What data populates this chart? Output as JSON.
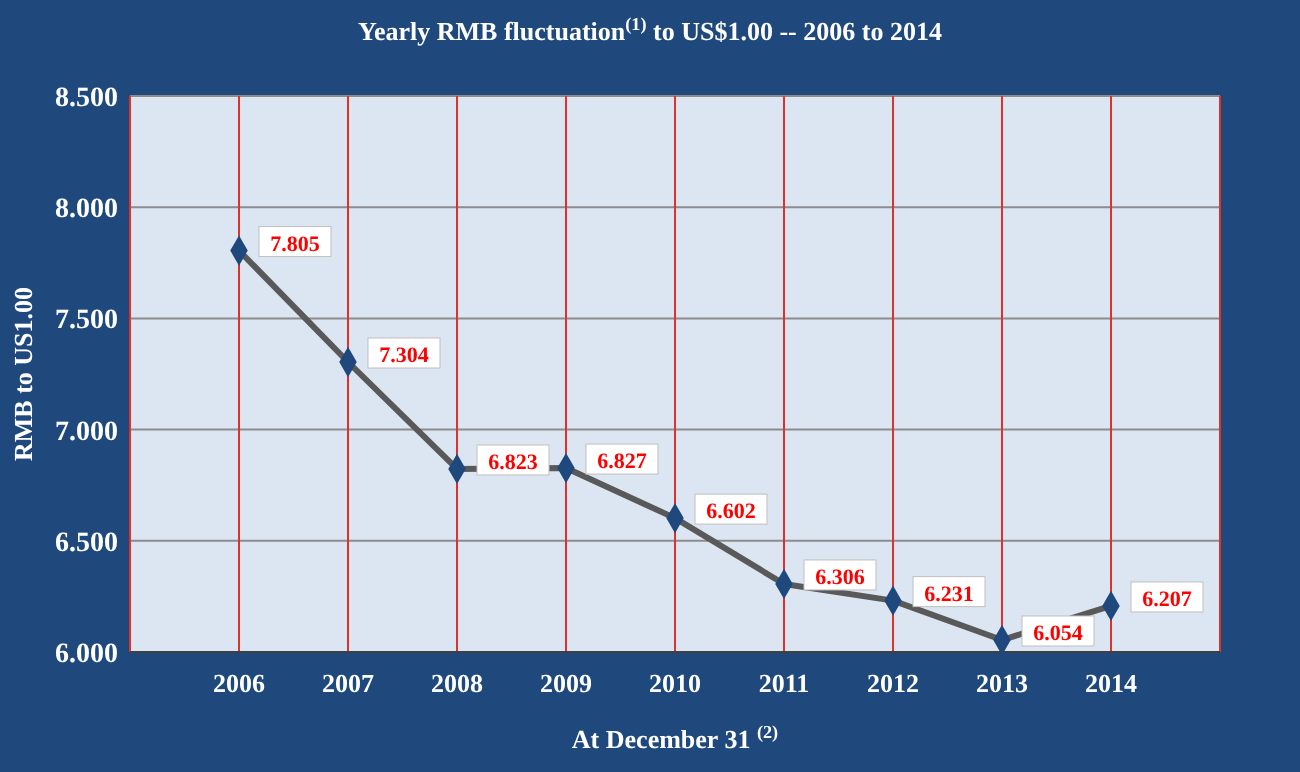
{
  "chart_data": {
    "type": "line",
    "title": "Yearly RMB fluctuation$^{(1)}$ to US$1.00 -- 2006 to 2014",
    "xlabel": "At December 31 $^{(2)}$",
    "ylabel": "RMB to US1.00",
    "categories": [
      "2006",
      "2007",
      "2008",
      "2009",
      "2010",
      "2011",
      "2012",
      "2013",
      "2014"
    ],
    "series": [
      {
        "color": "#595959",
        "values": [
          7.805,
          7.304,
          6.823,
          6.827,
          6.602,
          6.306,
          6.231,
          6.054,
          6.207
        ]
      }
    ],
    "ylim": [
      6,
      8.5
    ],
    "yticks": [
      {
        "value": 6,
        "label": "6.000"
      },
      {
        "value": 6.5,
        "label": "6.500"
      },
      {
        "value": 7,
        "label": "7.000"
      },
      {
        "value": 7.5,
        "label": "7.500"
      },
      {
        "value": 8,
        "label": "8.000"
      },
      {
        "value": 8.5,
        "label": "8.500"
      }
    ],
    "grid": true,
    "marker": "diamond",
    "line_style": "solid",
    "data_labels": true
  }
}
